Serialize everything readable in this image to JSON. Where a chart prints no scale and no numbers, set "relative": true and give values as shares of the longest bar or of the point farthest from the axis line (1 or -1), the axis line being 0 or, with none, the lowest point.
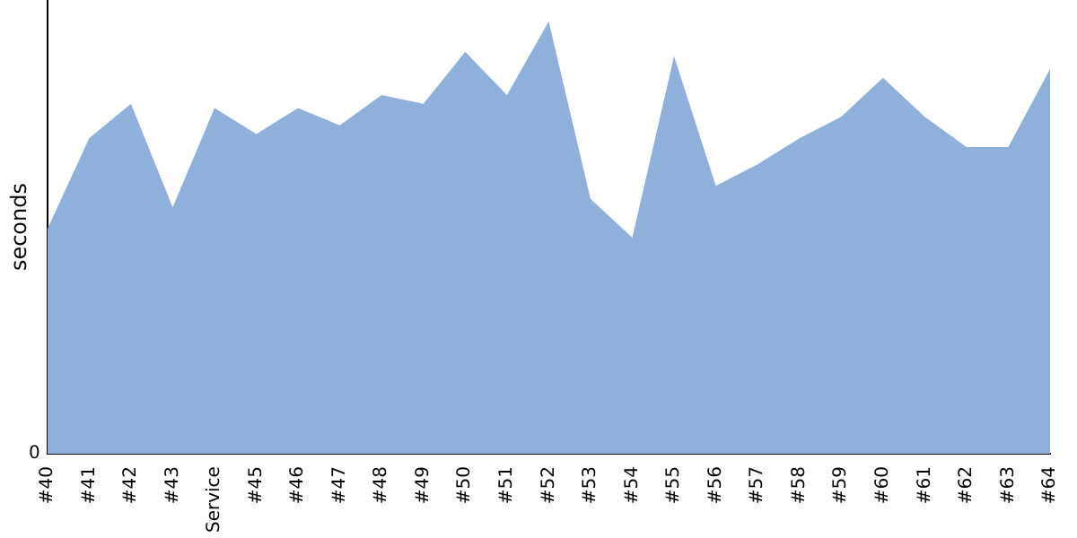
{
  "chart_data": {
    "type": "area",
    "ylabel": "seconds",
    "relative": true,
    "annotations": [
      "0"
    ],
    "grid": false,
    "legend": false,
    "categories": [
      "#40",
      "#41",
      "#42",
      "#43",
      "Service",
      "#45",
      "#46",
      "#47",
      "#48",
      "#49",
      "#50",
      "#51",
      "#52",
      "#53",
      "#54",
      "#55",
      "#56",
      "#57",
      "#58",
      "#59",
      "#60",
      "#61",
      "#62",
      "#63",
      "#64"
    ],
    "series": [
      {
        "color": "#8fb0db",
        "values": [
          0.52,
          0.73,
          0.81,
          0.57,
          0.8,
          0.74,
          0.8,
          0.76,
          0.83,
          0.81,
          0.93,
          0.83,
          1,
          0.59,
          0.5,
          0.92,
          0.62,
          0.67,
          0.73,
          0.78,
          0.87,
          0.78,
          0.71,
          0.71,
          0.89
        ]
      }
    ]
  }
}
